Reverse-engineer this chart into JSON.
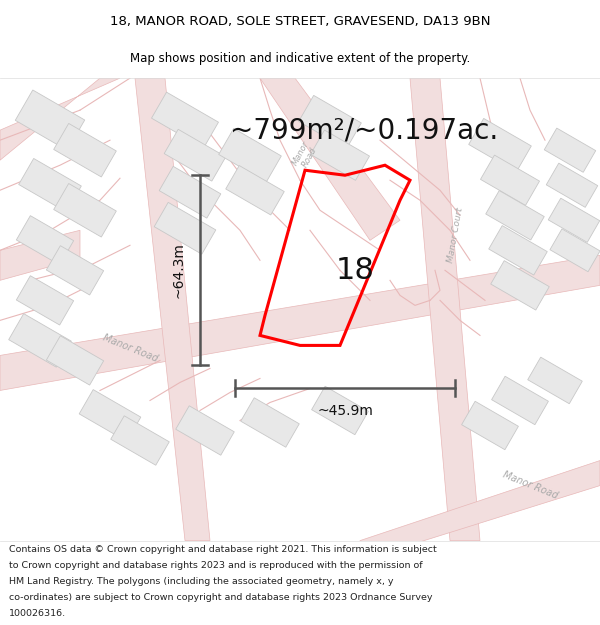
{
  "title_line1": "18, MANOR ROAD, SOLE STREET, GRAVESEND, DA13 9BN",
  "title_line2": "Map shows position and indicative extent of the property.",
  "area_text": "~799m²/~0.197ac.",
  "number_label": "18",
  "dim_vertical": "~64.3m",
  "dim_horizontal": "~45.9m",
  "footer_text": "Contains OS data © Crown copyright and database right 2021. This information is subject to Crown copyright and database rights 2023 and is reproduced with the permission of HM Land Registry. The polygons (including the associated geometry, namely x, y co-ordinates) are subject to Crown copyright and database rights 2023 Ordnance Survey 100026316.",
  "bg_color": "#ffffff",
  "map_bg": "#f7f7f7",
  "road_fill": "#f2dede",
  "road_edge": "#e8b8b8",
  "building_fill": "#e8e8e8",
  "building_edge": "#c8c8c8",
  "property_color": "#ff0000",
  "dim_color": "#555555",
  "road_label_color": "#aaaaaa",
  "title_color": "#000000",
  "area_color": "#111111",
  "footer_color": "#222222"
}
